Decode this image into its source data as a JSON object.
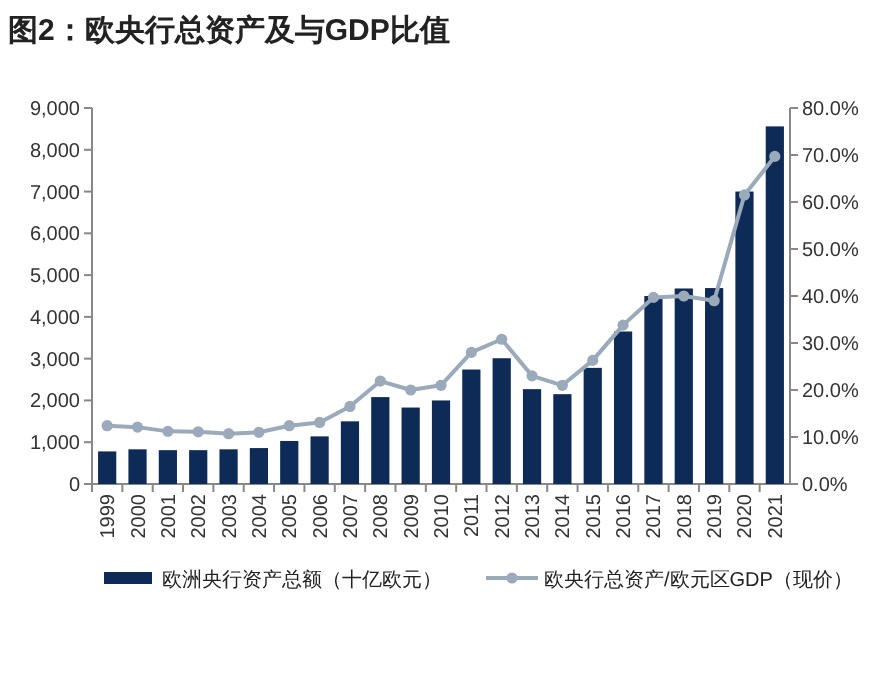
{
  "chart_data": {
    "type": "bar",
    "title": "图2：欧央行总资产及与GDP比值",
    "categories": [
      "1999",
      "2000",
      "2001",
      "2002",
      "2003",
      "2004",
      "2005",
      "2006",
      "2007",
      "2008",
      "2009",
      "2010",
      "2011",
      "2012",
      "2013",
      "2014",
      "2015",
      "2016",
      "2017",
      "2018",
      "2019",
      "2020",
      "2021"
    ],
    "series": [
      {
        "name": "欧洲央行资产总额（十亿欧元）",
        "color": "#0e2a56",
        "values": [
          780,
          830,
          810,
          810,
          830,
          860,
          1030,
          1140,
          1500,
          2080,
          1830,
          2000,
          2740,
          3010,
          2270,
          2150,
          2780,
          3650,
          4500,
          4680,
          4690,
          7000,
          8560
        ]
      },
      {
        "name": "欧央行总资产/欧元区GDP（现价）",
        "type": "line",
        "axis": "y2",
        "color": "#9aaabb",
        "marker": "circle",
        "values": [
          12.4,
          12.1,
          11.2,
          11.1,
          10.7,
          11.0,
          12.4,
          13.1,
          16.5,
          21.9,
          20.0,
          21.0,
          28.0,
          30.8,
          23.0,
          21.0,
          26.3,
          33.8,
          39.7,
          40.0,
          39.0,
          61.5,
          69.7
        ]
      }
    ],
    "ylim": [
      0,
      9000
    ],
    "yticks": [
      {
        "value": 0,
        "label": "0"
      },
      {
        "value": 1000,
        "label": "1,000"
      },
      {
        "value": 2000,
        "label": "2,000"
      },
      {
        "value": 3000,
        "label": "3,000"
      },
      {
        "value": 4000,
        "label": "4,000"
      },
      {
        "value": 5000,
        "label": "5,000"
      },
      {
        "value": 6000,
        "label": "6,000"
      },
      {
        "value": 7000,
        "label": "7,000"
      },
      {
        "value": 8000,
        "label": "8,000"
      },
      {
        "value": 9000,
        "label": "9,000"
      }
    ],
    "y2lim": [
      0,
      80
    ],
    "y2ticks": [
      {
        "value": 0,
        "label": "0.0%"
      },
      {
        "value": 10,
        "label": "10.0%"
      },
      {
        "value": 20,
        "label": "20.0%"
      },
      {
        "value": 30,
        "label": "30.0%"
      },
      {
        "value": 40,
        "label": "40.0%"
      },
      {
        "value": 50,
        "label": "50.0%"
      },
      {
        "value": 60,
        "label": "60.0%"
      },
      {
        "value": 70,
        "label": "70.0%"
      },
      {
        "value": 80,
        "label": "80.0%"
      }
    ],
    "grid": false,
    "legend": "bottom"
  }
}
